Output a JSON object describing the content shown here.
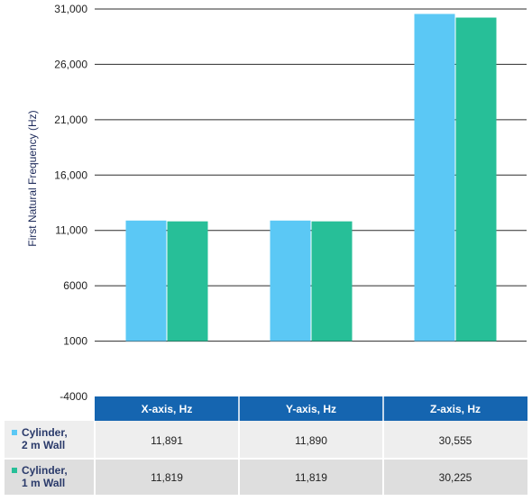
{
  "chart_data": {
    "type": "bar",
    "ylabel": "First Natural Frequency (Hz)",
    "yticks": [
      "-4000",
      "1000",
      "6000",
      "11,000",
      "16,000",
      "21,000",
      "26,000",
      "31,000"
    ],
    "ytick_values": [
      -4000,
      1000,
      6000,
      11000,
      16000,
      21000,
      26000,
      31000
    ],
    "ylim": [
      -4000,
      31000
    ],
    "grid": true,
    "categories": [
      "X-axis, Hz",
      "Y-axis, Hz",
      "Z-axis, Hz"
    ],
    "series": [
      {
        "name_lines": [
          "Cylinder,",
          "2 m Wall"
        ],
        "color": "#5bc8f5",
        "values": [
          11891,
          11890,
          30555
        ],
        "labels": [
          "11,891",
          "11,890",
          "30,555"
        ]
      },
      {
        "name_lines": [
          "Cylinder,",
          "1 m Wall"
        ],
        "color": "#27bf98",
        "values": [
          11819,
          11819,
          30225
        ],
        "labels": [
          "11,819",
          "11,819",
          "30,225"
        ]
      }
    ]
  },
  "colors": {
    "header_bg": "#1565b0",
    "row1_bg": "#eeeeee",
    "row2_bg": "#dedede"
  }
}
